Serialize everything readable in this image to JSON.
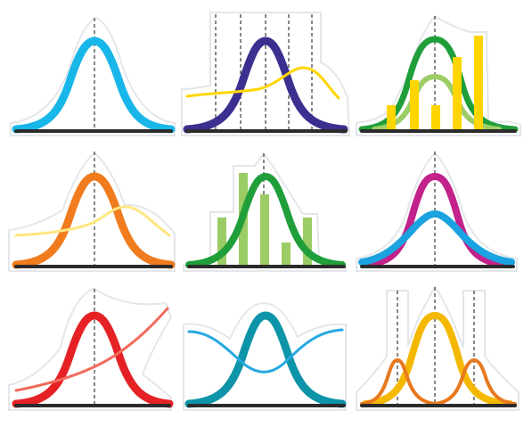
{
  "colors": {
    "cyan": "#19b6ea",
    "navy": "#3b2f8f",
    "green": "#1f9e3a",
    "light_green": "#9ccc65",
    "yellow": "#ffd500",
    "orange": "#f07c1e",
    "light_yellow": "#ffe680",
    "magenta": "#c2228a",
    "blue": "#1aa3e0",
    "red": "#e52125",
    "salmon": "#f26b5b",
    "teal": "#0e94a8",
    "sky": "#27a8e0",
    "gold": "#f5b800",
    "burnt_orange": "#e8791f",
    "axis": "#2b2b2b"
  },
  "icons": [
    {
      "name": "single-bell-curve-icon"
    },
    {
      "name": "bell-curve-with-skew-line-icon"
    },
    {
      "name": "nested-bell-curves-with-bars-icon"
    },
    {
      "name": "bell-curve-with-shifted-curve-icon"
    },
    {
      "name": "bell-curve-histogram-icon"
    },
    {
      "name": "overlapping-bell-curves-icon"
    },
    {
      "name": "bell-curve-with-rising-curve-icon"
    },
    {
      "name": "crossing-curves-icon"
    },
    {
      "name": "tri-modal-curves-icon"
    }
  ]
}
